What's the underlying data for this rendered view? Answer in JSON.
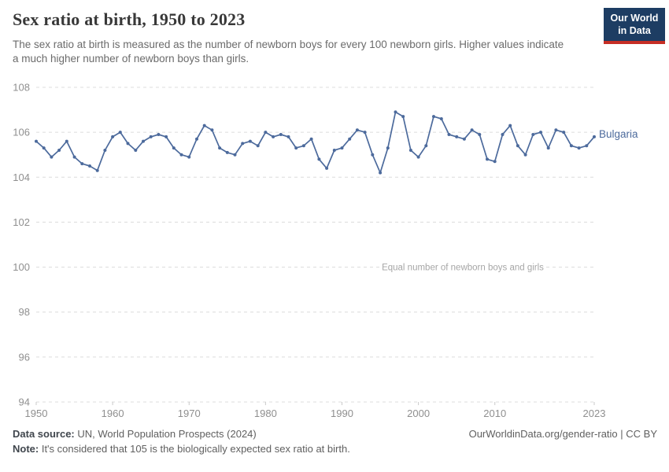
{
  "header": {
    "title": "Sex ratio at birth, 1950 to 2023",
    "subtitle": "The sex ratio at birth is measured as the number of newborn boys for every 100 newborn girls. Higher values indicate a much higher number of newborn boys than girls.",
    "logo_line1": "Our World",
    "logo_line2": "in Data"
  },
  "chart_data": {
    "type": "line",
    "title": "Sex ratio at birth, 1950 to 2023",
    "xlabel": "",
    "ylabel": "",
    "xlim": [
      1950,
      2023
    ],
    "ylim": [
      94,
      108
    ],
    "grid": true,
    "xticks": [
      1950,
      1960,
      1970,
      1980,
      1990,
      2000,
      2010,
      2023
    ],
    "yticks": [
      94,
      96,
      98,
      100,
      102,
      104,
      106,
      108
    ],
    "annotation": {
      "text": "Equal number of newborn boys and girls",
      "y": 100
    },
    "line_color": "#4c6a9c",
    "grid_color": "#dcdcdc",
    "axis_label_color": "#8f8f8f",
    "annotation_color": "#a6a6a6",
    "years": [
      1950,
      1951,
      1952,
      1953,
      1954,
      1955,
      1956,
      1957,
      1958,
      1959,
      1960,
      1961,
      1962,
      1963,
      1964,
      1965,
      1966,
      1967,
      1968,
      1969,
      1970,
      1971,
      1972,
      1973,
      1974,
      1975,
      1976,
      1977,
      1978,
      1979,
      1980,
      1981,
      1982,
      1983,
      1984,
      1985,
      1986,
      1987,
      1988,
      1989,
      1990,
      1991,
      1992,
      1993,
      1994,
      1995,
      1996,
      1997,
      1998,
      1999,
      2000,
      2001,
      2002,
      2003,
      2004,
      2005,
      2006,
      2007,
      2008,
      2009,
      2010,
      2011,
      2012,
      2013,
      2014,
      2015,
      2016,
      2017,
      2018,
      2019,
      2020,
      2021,
      2022,
      2023
    ],
    "series": [
      {
        "name": "Bulgaria",
        "values": [
          105.6,
          105.3,
          104.9,
          105.2,
          105.6,
          104.9,
          104.6,
          104.5,
          104.3,
          105.2,
          105.8,
          106.0,
          105.5,
          105.2,
          105.6,
          105.8,
          105.9,
          105.8,
          105.3,
          105.0,
          104.9,
          105.7,
          106.3,
          106.1,
          105.3,
          105.1,
          105.0,
          105.5,
          105.6,
          105.4,
          106.0,
          105.8,
          105.9,
          105.8,
          105.3,
          105.4,
          105.7,
          104.8,
          104.4,
          105.2,
          105.3,
          105.7,
          106.1,
          106.0,
          105.0,
          104.2,
          105.3,
          106.9,
          106.7,
          105.2,
          104.9,
          105.4,
          106.7,
          106.6,
          105.9,
          105.8,
          105.7,
          106.1,
          105.9,
          104.8,
          104.7,
          105.9,
          106.3,
          105.4,
          105.0,
          105.9,
          106.0,
          105.3,
          106.1,
          106.0,
          105.4,
          105.3,
          105.4,
          105.8
        ]
      }
    ],
    "legend_position": "end-of-line-label"
  },
  "footer": {
    "source_label": "Data source:",
    "source_text": " UN, World Population Prospects (2024)",
    "link": "OurWorldinData.org/gender-ratio | CC BY",
    "note_label": "Note:",
    "note_text": " It's considered that 105 is the biologically expected sex ratio at birth."
  }
}
